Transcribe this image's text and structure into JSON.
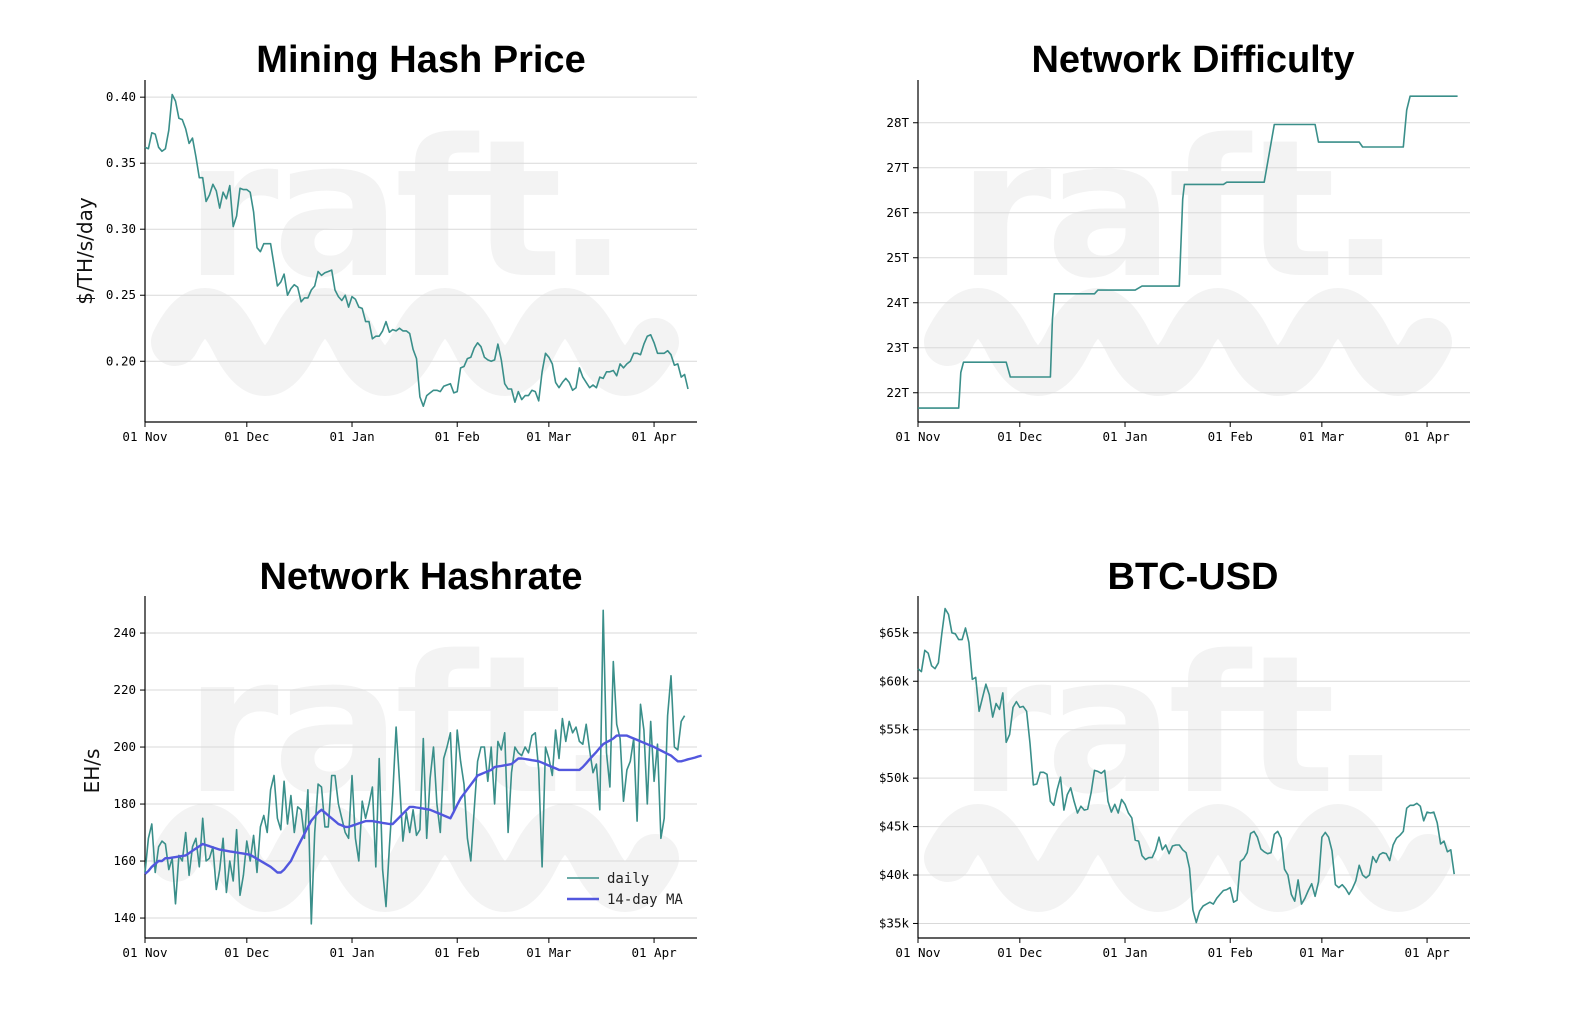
{
  "colors": {
    "line": "#3a8f8a",
    "ma": "#5257de",
    "grid": "#d9d9d9",
    "watermark": "#f3f3f3"
  },
  "watermark_text": "raft.",
  "chart_data": [
    {
      "id": "hash-price",
      "type": "line",
      "title": "Mining Hash Price",
      "ylabel": "$/TH/s/day",
      "xlabel": "",
      "xlim": [
        0,
        160
      ],
      "xticks": [
        0,
        30,
        61,
        92,
        119,
        150
      ],
      "xtick_labels": [
        "01 Nov",
        "01 Dec",
        "01 Jan",
        "01 Feb",
        "01 Mar",
        "01 Apr"
      ],
      "ylim": [
        0.154,
        0.413
      ],
      "yticks": [
        0.2,
        0.25,
        0.3,
        0.35,
        0.4
      ],
      "ytick_labels": [
        "0.20",
        "0.25",
        "0.30",
        "0.35",
        "0.40"
      ],
      "series": [
        {
          "name": "hash price",
          "kind": "line",
          "values": [
            0.362,
            0.361,
            0.373,
            0.372,
            0.362,
            0.359,
            0.361,
            0.375,
            0.402,
            0.397,
            0.384,
            0.383,
            0.376,
            0.365,
            0.369,
            0.355,
            0.339,
            0.339,
            0.321,
            0.326,
            0.334,
            0.329,
            0.316,
            0.328,
            0.323,
            0.333,
            0.302,
            0.31,
            0.331,
            0.33,
            0.33,
            0.328,
            0.313,
            0.286,
            0.283,
            0.289,
            0.289,
            0.289,
            0.273,
            0.257,
            0.26,
            0.266,
            0.25,
            0.255,
            0.258,
            0.256,
            0.245,
            0.248,
            0.248,
            0.254,
            0.257,
            0.268,
            0.265,
            0.267,
            0.268,
            0.269,
            0.254,
            0.249,
            0.246,
            0.25,
            0.241,
            0.249,
            0.247,
            0.241,
            0.24,
            0.23,
            0.23,
            0.217,
            0.219,
            0.219,
            0.223,
            0.23,
            0.222,
            0.224,
            0.223,
            0.225,
            0.223,
            0.223,
            0.221,
            0.209,
            0.202,
            0.173,
            0.166,
            0.174,
            0.176,
            0.178,
            0.178,
            0.177,
            0.181,
            0.182,
            0.183,
            0.176,
            0.177,
            0.195,
            0.196,
            0.202,
            0.203,
            0.21,
            0.214,
            0.211,
            0.203,
            0.201,
            0.2,
            0.201,
            0.213,
            0.201,
            0.183,
            0.179,
            0.179,
            0.169,
            0.177,
            0.171,
            0.174,
            0.174,
            0.178,
            0.177,
            0.17,
            0.192,
            0.206,
            0.203,
            0.198,
            0.184,
            0.18,
            0.184,
            0.187,
            0.184,
            0.178,
            0.18,
            0.195,
            0.188,
            0.184,
            0.18,
            0.182,
            0.18,
            0.188,
            0.187,
            0.192,
            0.192,
            0.193,
            0.189,
            0.198,
            0.195,
            0.198,
            0.2,
            0.206,
            0.206,
            0.205,
            0.213,
            0.219,
            0.22,
            0.214,
            0.206,
            0.206,
            0.206,
            0.208,
            0.205,
            0.197,
            0.198,
            0.188,
            0.19,
            0.179
          ]
        }
      ]
    },
    {
      "id": "difficulty",
      "type": "line",
      "title": "Network Difficulty",
      "ylabel": "",
      "xlabel": "",
      "xlim": [
        0,
        160
      ],
      "xticks": [
        0,
        30,
        61,
        92,
        119,
        150
      ],
      "xtick_labels": [
        "01 Nov",
        "01 Dec",
        "01 Jan",
        "01 Feb",
        "01 Mar",
        "01 Apr"
      ],
      "ylim": [
        21.35,
        28.95
      ],
      "yticks": [
        22,
        23,
        24,
        25,
        26,
        27,
        28
      ],
      "ytick_labels": [
        "22T",
        "23T",
        "24T",
        "25T",
        "26T",
        "27T",
        "28T"
      ],
      "series": [
        {
          "name": "difficulty",
          "kind": "line",
          "values": [
            [
              0,
              21.66
            ],
            [
              12,
              21.66
            ],
            [
              12.6,
              22.45
            ],
            [
              13.4,
              22.68
            ],
            [
              26,
              22.68
            ],
            [
              27.2,
              22.35
            ],
            [
              39,
              22.35
            ],
            [
              39.6,
              23.62
            ],
            [
              40.2,
              24.2
            ],
            [
              52,
              24.2
            ],
            [
              53,
              24.28
            ],
            [
              64,
              24.28
            ],
            [
              66,
              24.37
            ],
            [
              77,
              24.37
            ],
            [
              78,
              26.3
            ],
            [
              78.5,
              26.63
            ],
            [
              90,
              26.63
            ],
            [
              91,
              26.68
            ],
            [
              102,
              26.68
            ],
            [
              105,
              27.96
            ],
            [
              117,
              27.96
            ],
            [
              118,
              27.57
            ],
            [
              130,
              27.57
            ],
            [
              131,
              27.46
            ],
            [
              143,
              27.46
            ],
            [
              144,
              28.28
            ],
            [
              145,
              28.59
            ],
            [
              159,
              28.59
            ]
          ]
        }
      ]
    },
    {
      "id": "hashrate",
      "type": "line",
      "title": "Network Hashrate",
      "ylabel": "EH/s",
      "xlabel": "",
      "xlim": [
        0,
        160
      ],
      "xticks": [
        0,
        30,
        61,
        92,
        119,
        150
      ],
      "xtick_labels": [
        "01 Nov",
        "01 Dec",
        "01 Jan",
        "01 Feb",
        "01 Mar",
        "01 Apr"
      ],
      "ylim": [
        133,
        253
      ],
      "yticks": [
        140,
        160,
        180,
        200,
        220,
        240
      ],
      "ytick_labels": [
        "140",
        "160",
        "180",
        "200",
        "220",
        "240"
      ],
      "legend": {
        "position": "lower-right",
        "entries": [
          "daily",
          "14-day MA"
        ]
      },
      "series": [
        {
          "name": "daily",
          "kind": "line",
          "values": [
            156,
            168,
            173,
            156,
            165,
            167,
            166,
            157,
            161,
            145,
            162,
            160,
            170,
            155,
            165,
            168,
            158,
            175,
            160,
            161,
            165,
            150,
            157,
            168,
            149,
            160,
            153,
            171,
            148,
            155,
            167,
            160,
            169,
            156,
            172,
            176,
            170,
            185,
            190,
            175,
            171,
            188,
            173,
            183,
            170,
            179,
            178,
            168,
            185,
            138,
            170,
            187,
            186,
            172,
            172,
            190,
            190,
            180,
            175,
            170,
            168,
            190,
            168,
            160,
            181,
            175,
            180,
            186,
            158,
            196,
            157,
            144,
            165,
            183,
            207,
            188,
            167,
            177,
            170,
            178,
            169,
            171,
            203,
            168,
            189,
            200,
            180,
            170,
            196,
            200,
            205,
            177,
            206,
            195,
            187,
            168,
            160,
            178,
            195,
            200,
            200,
            188,
            200,
            180,
            202,
            199,
            205,
            170,
            191,
            200,
            198,
            197,
            200,
            198,
            204,
            205,
            192,
            158,
            200,
            196,
            190,
            206,
            196,
            210,
            202,
            209,
            205,
            207,
            202,
            201,
            208,
            199,
            191,
            194,
            178,
            248,
            198,
            186,
            230,
            208,
            203,
            181,
            192,
            195,
            203,
            174,
            215,
            206,
            180,
            209,
            188,
            201,
            168,
            175,
            211,
            225,
            200,
            199,
            209,
            211
          ]
        },
        {
          "name": "14-day MA",
          "kind": "line",
          "values": [
            155.5,
            156.5,
            158.0,
            159.0,
            160.0,
            160.0,
            161.0,
            161.0,
            161.2,
            161.4,
            161.6,
            161.8,
            162.0,
            162.8,
            163.6,
            164.4,
            165.2,
            166.0,
            165.6,
            165.2,
            164.8,
            164.4,
            164.0,
            163.8,
            163.6,
            163.4,
            163.2,
            163.0,
            162.8,
            162.6,
            162.4,
            162.2,
            161.5,
            160.8,
            160.1,
            159.4,
            158.7,
            158.0,
            157.0,
            156.0,
            156.0,
            157.0,
            158.5,
            160.0,
            162.5,
            165.0,
            167.3,
            169.6,
            171.9,
            174.2,
            175.6,
            177.0,
            178.0,
            177.0,
            176.0,
            175.0,
            174.0,
            173.0,
            172.5,
            172.0,
            172.0,
            172.4,
            172.8,
            173.2,
            173.6,
            174.0,
            174.0,
            174.0,
            173.8,
            173.6,
            173.4,
            173.2,
            173.0,
            173.0,
            174.2,
            175.4,
            176.6,
            177.8,
            179.0,
            179.0,
            178.8,
            178.6,
            178.4,
            178.2,
            178.0,
            177.5,
            177.0,
            176.5,
            176.0,
            175.5,
            175.0,
            177.3,
            179.7,
            182.0,
            183.6,
            185.2,
            186.8,
            188.4,
            190.0,
            190.5,
            191.0,
            191.5,
            192.0,
            193.0,
            193.2,
            193.4,
            193.6,
            193.8,
            194.0,
            195.0,
            196.0,
            196.0,
            195.8,
            195.6,
            195.4,
            195.2,
            195.0,
            194.5,
            194.0,
            193.5,
            193.0,
            192.5,
            192.0,
            192.0,
            192.0,
            192.0,
            192.0,
            192.0,
            192.0,
            193.0,
            194.3,
            195.7,
            197.0,
            198.3,
            199.7,
            201.0,
            201.7,
            202.3,
            203.0,
            204.0,
            204.0,
            204.0,
            204.0,
            203.5,
            203.0,
            202.5,
            202.0,
            201.5,
            201.0,
            200.5,
            200.0,
            199.4,
            198.8,
            198.2,
            197.6,
            197.0,
            196.0,
            195.0,
            195.0,
            195.3,
            195.7,
            196.0,
            196.3,
            196.7,
            197.0
          ]
        }
      ]
    },
    {
      "id": "btc-usd",
      "type": "line",
      "title": "BTC-USD",
      "ylabel": "",
      "xlabel": "",
      "xlim": [
        0,
        160
      ],
      "xticks": [
        0,
        30,
        61,
        92,
        119,
        150
      ],
      "xtick_labels": [
        "01 Nov",
        "01 Dec",
        "01 Jan",
        "01 Feb",
        "01 Mar",
        "01 Apr"
      ],
      "ylim": [
        33.5,
        68.8
      ],
      "yticks": [
        35,
        40,
        45,
        50,
        55,
        60,
        65
      ],
      "ytick_labels": [
        "$35k",
        "$40k",
        "$45k",
        "$50k",
        "$55k",
        "$60k",
        "$65k"
      ],
      "series": [
        {
          "name": "BTC-USD",
          "kind": "line",
          "values": [
            61.3,
            61.0,
            63.2,
            62.9,
            61.6,
            61.3,
            61.9,
            64.9,
            67.5,
            66.9,
            65.0,
            64.9,
            64.3,
            64.3,
            65.5,
            64.0,
            60.2,
            60.4,
            56.9,
            58.3,
            59.7,
            58.6,
            56.3,
            57.7,
            57.1,
            58.8,
            53.7,
            54.5,
            57.3,
            57.9,
            57.3,
            57.4,
            56.9,
            53.6,
            49.3,
            49.4,
            50.6,
            50.6,
            50.4,
            47.6,
            47.2,
            48.8,
            50.1,
            46.7,
            48.3,
            49.0,
            47.6,
            46.4,
            47.1,
            46.7,
            46.8,
            48.5,
            50.8,
            50.7,
            50.5,
            50.8,
            47.6,
            46.5,
            47.3,
            46.4,
            47.8,
            47.3,
            46.4,
            45.9,
            43.6,
            43.5,
            42.0,
            41.6,
            41.8,
            41.8,
            42.6,
            43.9,
            42.6,
            43.1,
            42.2,
            43.0,
            43.1,
            43.1,
            42.6,
            42.3,
            40.7,
            36.4,
            35.1,
            36.3,
            36.8,
            37.0,
            37.2,
            37.0,
            37.6,
            38.0,
            38.4,
            38.5,
            38.7,
            37.2,
            37.4,
            41.4,
            41.7,
            42.3,
            44.3,
            44.5,
            43.9,
            42.7,
            42.4,
            42.2,
            42.3,
            44.2,
            44.5,
            43.8,
            40.6,
            40.0,
            38.0,
            37.3,
            39.5,
            37.0,
            37.6,
            38.4,
            39.1,
            37.8,
            39.3,
            43.9,
            44.4,
            43.9,
            42.5,
            39.0,
            38.7,
            39.0,
            38.6,
            38.0,
            38.6,
            39.4,
            41.0,
            40.0,
            39.7,
            40.0,
            41.9,
            41.3,
            42.1,
            42.3,
            42.2,
            41.5,
            43.1,
            43.8,
            44.1,
            44.5,
            46.9,
            47.2,
            47.2,
            47.4,
            47.1,
            45.6,
            46.5,
            46.4,
            46.5,
            45.4,
            43.2,
            43.5,
            42.4,
            42.6,
            40.1
          ]
        }
      ]
    }
  ]
}
